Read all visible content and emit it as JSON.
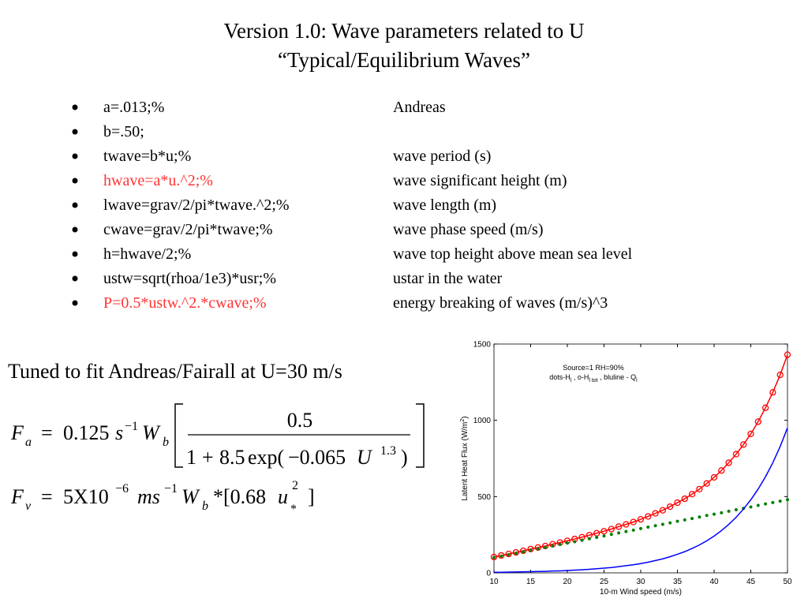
{
  "title": [
    "Version 1.0: Wave parameters related to U",
    "“Typical/Equilibrium Waves”"
  ],
  "bullets": [
    {
      "code": "a=.013;%",
      "comment": "Andreas",
      "color": "#000000"
    },
    {
      "code": "b=.50;",
      "color": "#000000"
    },
    {
      "code": "twave=b*u;%",
      "comment": "wave period (s)",
      "color": "#000000"
    },
    {
      "code": "hwave=a*u.^2;%",
      "comment": "wave significant height (m)",
      "color": "#ff3333"
    },
    {
      "code": "lwave=grav/2/pi*twave.^2;%",
      "comment": "wave length (m)",
      "color": "#000000"
    },
    {
      "code": "cwave=grav/2/pi*twave;%",
      "comment": "wave phase speed (m/s)",
      "color": "#000000"
    },
    {
      "code": "h=hwave/2;%",
      "comment": "wave top height above mean sea level",
      "color": "#000000"
    },
    {
      "code": "ustw=sqrt(rhoa/1e3)*usr;%",
      "comment": "ustar in the water",
      "color": "#000000"
    },
    {
      "code": "P=0.5*ustw.^2.*cwave;%",
      "comment": "energy breaking of waves (m/s)^3",
      "color": "#ff3333"
    }
  ],
  "tuned_text": "Tuned to fit Andreas/Fairall at U=30 m/s",
  "equation_1": {
    "lhs": "F",
    "lhs_sub": "a",
    "equals": "=",
    "coef": "0.125",
    "s": "s",
    "s_exp": "−1",
    "w": "W",
    "w_sub": "b",
    "numerator": "0.5",
    "one": "1",
    "plus": "+",
    "coef2": "8.5",
    "exp": "exp(",
    "neg": "−0.065",
    "u": "U",
    "u_exp": "1.3",
    "close": ")"
  },
  "equation_2": {
    "lhs": "F",
    "lhs_sub": "v",
    "equals": "=",
    "coef": "5X10",
    "coef_exp": "−6",
    "ms": "ms",
    "ms_exp": "−1",
    "w": "W",
    "w_sub": "b",
    "bracket": "*[0.68",
    "u": "u",
    "u_exp": "2",
    "u_sub": "*",
    "close": "]"
  },
  "chart_data": {
    "type": "line",
    "x": [
      10,
      11,
      12,
      13,
      14,
      15,
      16,
      17,
      18,
      19,
      20,
      21,
      22,
      23,
      24,
      25,
      26,
      27,
      28,
      29,
      30,
      31,
      32,
      33,
      34,
      35,
      36,
      37,
      38,
      39,
      40,
      41,
      42,
      43,
      44,
      45,
      46,
      47,
      48,
      49,
      50
    ],
    "series": [
      {
        "color": "#ff0000",
        "marker": "circle",
        "values": [
          104,
          114,
          124,
          134,
          145,
          156,
          166,
          176,
          188,
          199,
          210,
          222,
          234,
          247,
          260,
          273,
          287,
          303,
          318,
          333,
          351,
          370,
          390,
          410,
          434,
          460,
          486,
          516,
          549,
          586,
          626,
          671,
          722,
          778,
          841,
          911,
          991,
          1082,
          1183,
          1298,
          1430
        ]
      },
      {
        "color": "#008000",
        "marker": "dot",
        "values": [
          100,
          110,
          119,
          128,
          138,
          148,
          157,
          166,
          176,
          186,
          195,
          204,
          214,
          224,
          233,
          242,
          252,
          262,
          271,
          280,
          290,
          300,
          309,
          318,
          328,
          338,
          347,
          356,
          366,
          376,
          385,
          394,
          404,
          414,
          423,
          432,
          442,
          452,
          461,
          470,
          480
        ]
      },
      {
        "color": "#0000ff",
        "marker": "none",
        "values": [
          4,
          4,
          5,
          6,
          7,
          8,
          9,
          10,
          12,
          13,
          15,
          18,
          20,
          23,
          27,
          31,
          35,
          41,
          47,
          53,
          61,
          70,
          81,
          92,
          106,
          122,
          139,
          160,
          183,
          210,
          241,
          277,
          318,
          364,
          418,
          479,
          549,
          630,
          722,
          828,
          950
        ]
      }
    ],
    "xlim": [
      10,
      50
    ],
    "ylim": [
      0,
      1500
    ],
    "xticks": [
      10,
      15,
      20,
      25,
      30,
      35,
      40,
      45,
      50
    ],
    "yticks": [
      0,
      500,
      1000,
      1500
    ],
    "xlabel": "10-m Wind speed (m/s)",
    "ylabel": [
      "Latent Heat Flux (W/m",
      "2",
      ")"
    ],
    "annotation": {
      "line1": "Source=1 RH=90%",
      "line2": [
        "dots-H",
        "l",
        " , o-H",
        "l tot",
        " , bluline - Q",
        "l"
      ]
    }
  }
}
